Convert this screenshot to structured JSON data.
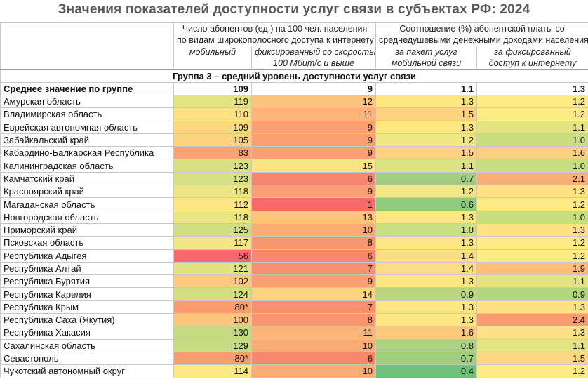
{
  "title": "Значения показателей доступности услуг связи в субъектах РФ: 2024",
  "headers": {
    "group1_line1": "Число абонентов (ед.) на 100 чел. населения",
    "group1_line2": "по видам широкополосного доступа к интернету",
    "group2_line1": "Соотношение (%) абонентской платы со",
    "group2_line2": "среднедушевыми денежными доходами населения",
    "col1": "мобильный",
    "col2_line1": "фиксированный со скоростью",
    "col2_line2": "100 Мбит/с и выше",
    "col3_line1": "за пакет услуг",
    "col3_line2": "мобильной связи",
    "col4_line1": "за фиксированный",
    "col4_line2": "доступ к интернету"
  },
  "group_title": "Группа 3 – средний уровень доступности услуг связи",
  "mean_row": {
    "name": "Среднее значение по группе",
    "values": [
      "109",
      "9",
      "1.1",
      "1.3"
    ]
  },
  "chart_data": {
    "type": "heatmap",
    "title": "Значения показателей доступности услуг связи в субъектах РФ: 2024",
    "columns": [
      "мобильный",
      "фиксированный со скоростью 100 Мбит/с и выше",
      "за пакет услуг мобильной связи",
      "за фиксированный доступ к интернету"
    ],
    "color_scale": {
      "low": "#f8696b",
      "mid": "#ffeb84",
      "high": "#63be7b"
    },
    "rows": [
      {
        "name": "Амурская область",
        "values": [
          "119",
          "12",
          "1.3",
          "1.2"
        ],
        "colors": [
          "#e4e383",
          "#fcc57b",
          "#fee783",
          "#ffeb84"
        ]
      },
      {
        "name": "Владимирская область",
        "values": [
          "110",
          "11",
          "1.5",
          "1.2"
        ],
        "colors": [
          "#fde182",
          "#fbb578",
          "#fdd17f",
          "#ffeb84"
        ]
      },
      {
        "name": "Еврейская автономная область",
        "values": [
          "109",
          "9",
          "1.3",
          "1.1"
        ],
        "colors": [
          "#fdd880",
          "#fa9e73",
          "#fee783",
          "#e3e383"
        ]
      },
      {
        "name": "Забайкальский край",
        "values": [
          "105",
          "9",
          "1.2",
          "1.0"
        ],
        "colors": [
          "#fdd27f",
          "#fa9e73",
          "#f0e683",
          "#c9dd82"
        ]
      },
      {
        "name": "Кабардино-Балкарская Республика",
        "values": [
          "83",
          "9",
          "1.5",
          "1.6"
        ],
        "colors": [
          "#f9a273",
          "#fa9e73",
          "#fdd17f",
          "#fdd07f"
        ]
      },
      {
        "name": "Калининградская область",
        "values": [
          "123",
          "15",
          "1.1",
          "1.0"
        ],
        "colors": [
          "#d9e082",
          "#fee283",
          "#dde283",
          "#c9dd82"
        ]
      },
      {
        "name": "Камчатский край",
        "values": [
          "123",
          "6",
          "0.7",
          "2.1"
        ],
        "colors": [
          "#d9e082",
          "#f6876e",
          "#9fcf7e",
          "#fbae77"
        ]
      },
      {
        "name": "Красноярский край",
        "values": [
          "118",
          "9",
          "1.2",
          "1.3"
        ],
        "colors": [
          "#ebe583",
          "#fa9e73",
          "#f0e683",
          "#fee283"
        ]
      },
      {
        "name": "Магаданская область",
        "values": [
          "112",
          "1",
          "0.6",
          "1.2"
        ],
        "colors": [
          "#ffe583",
          "#f8696b",
          "#8fcb7e",
          "#ffeb84"
        ]
      },
      {
        "name": "Новгородская область",
        "values": [
          "118",
          "13",
          "1.3",
          "1.0"
        ],
        "colors": [
          "#ebe583",
          "#fcc57b",
          "#fee783",
          "#c9dd82"
        ]
      },
      {
        "name": "Приморский край",
        "values": [
          "125",
          "10",
          "1.0",
          "1.3"
        ],
        "colors": [
          "#d2de82",
          "#fbab76",
          "#cade82",
          "#fee283"
        ]
      },
      {
        "name": "Псковская область",
        "values": [
          "117",
          "8",
          "1.3",
          "1.2"
        ],
        "colors": [
          "#f2e784",
          "#f99672",
          "#fee783",
          "#ffeb84"
        ]
      },
      {
        "name": "Республика Адыгея",
        "values": [
          "56",
          "6",
          "1.4",
          "1.2"
        ],
        "colors": [
          "#f8696b",
          "#f8876e",
          "#fedc81",
          "#ffeb84"
        ]
      },
      {
        "name": "Республика Алтай",
        "values": [
          "121",
          "7",
          "1.4",
          "1.9"
        ],
        "colors": [
          "#e0e283",
          "#f98f70",
          "#fedc81",
          "#fcbe7a"
        ]
      },
      {
        "name": "Республика Бурятия",
        "values": [
          "102",
          "9",
          "1.3",
          "1.1"
        ],
        "colors": [
          "#fcc87c",
          "#fa9e73",
          "#fee783",
          "#e3e383"
        ]
      },
      {
        "name": "Республика Карелия",
        "values": [
          "124",
          "14",
          "0.9",
          "0.9"
        ],
        "colors": [
          "#d4df82",
          "#fdd47f",
          "#b9d780",
          "#b2d580"
        ]
      },
      {
        "name": "Республика Крым",
        "values": [
          "80*",
          "7",
          "1.3",
          "1.3"
        ],
        "colors": [
          "#f99c72",
          "#f98f70",
          "#fee783",
          "#fee283"
        ]
      },
      {
        "name": "Республика Саха (Якутия)",
        "values": [
          "100",
          "8",
          "1.3",
          "2.4"
        ],
        "colors": [
          "#fcc57b",
          "#f99672",
          "#fee783",
          "#f99c72"
        ]
      },
      {
        "name": "Республика Хакасия",
        "values": [
          "130",
          "11",
          "1.6",
          "1.3"
        ],
        "colors": [
          "#c4da81",
          "#fbb578",
          "#fdc87c",
          "#fee283"
        ]
      },
      {
        "name": "Сахалинская область",
        "values": [
          "129",
          "10",
          "0.8",
          "1.1"
        ],
        "colors": [
          "#c8db81",
          "#fbab76",
          "#acd27f",
          "#e3e383"
        ]
      },
      {
        "name": "Севастополь",
        "values": [
          "80*",
          "6",
          "0.7",
          "1.5"
        ],
        "colors": [
          "#f99c72",
          "#f8876e",
          "#9fcf7e",
          "#fdd880"
        ]
      },
      {
        "name": "Чукотский автономный округ",
        "values": [
          "114",
          "10",
          "0.4",
          "1.2"
        ],
        "colors": [
          "#fde983",
          "#fbab76",
          "#6ec27b",
          "#ffeb84"
        ]
      }
    ]
  }
}
